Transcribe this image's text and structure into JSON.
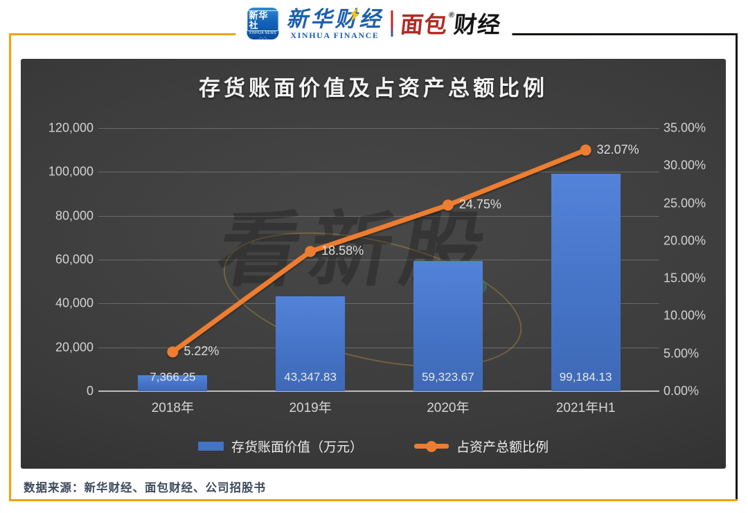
{
  "header": {
    "xinhua_icon": {
      "title": "新华社",
      "subtitle": "XINHUA NEWS"
    },
    "xinhua_finance": {
      "cn": "新华财经",
      "en": "XINHUA FINANCE"
    },
    "mianbao": {
      "red": "面包",
      "black": "财经",
      "reg": "®"
    }
  },
  "chart_data": {
    "type": "bar+line",
    "title": "存货账面价值及占资产总额比例",
    "categories": [
      "2018年",
      "2019年",
      "2020年",
      "2021年H1"
    ],
    "series": [
      {
        "name": "存货账面价值（万元）",
        "type": "bar",
        "axis": "left",
        "color": "#4472C4",
        "values": [
          7366.25,
          43347.83,
          59323.67,
          99184.13
        ],
        "labels": [
          "7,366.25",
          "43,347.83",
          "59,323.67",
          "99,184.13"
        ]
      },
      {
        "name": "占资产总额比例",
        "type": "line",
        "axis": "right",
        "color": "#ED7D31",
        "values": [
          5.22,
          18.58,
          24.75,
          32.07
        ],
        "labels": [
          "5.22%",
          "18.58%",
          "24.75%",
          "32.07%"
        ]
      }
    ],
    "left_axis": {
      "min": 0,
      "max": 120000,
      "ticks": [
        "120,000",
        "100,000",
        "80,000",
        "60,000",
        "40,000",
        "20,000",
        "0"
      ]
    },
    "right_axis": {
      "min": 0,
      "max": 35,
      "ticks": [
        "35.00%",
        "30.00%",
        "25.00%",
        "20.00%",
        "15.00%",
        "10.00%",
        "5.00%",
        "0.00%"
      ]
    },
    "grid": true,
    "legend_position": "bottom"
  },
  "watermark": "看新股",
  "footer": {
    "source": "数据来源：新华财经、面包财经、公司招股书"
  }
}
